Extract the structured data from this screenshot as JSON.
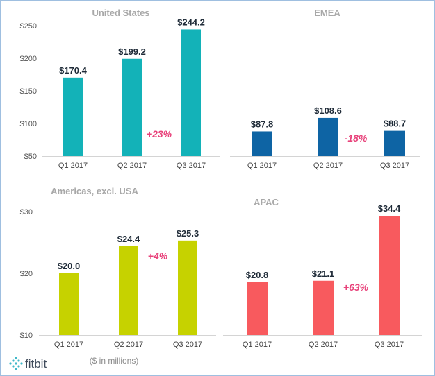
{
  "chart_data": [
    {
      "type": "bar",
      "title": "United States",
      "categories": [
        "Q1 2017",
        "Q2 2017",
        "Q3 2017"
      ],
      "values": [
        170.4,
        199.2,
        244.2
      ],
      "value_labels": [
        "$170.4",
        "$199.2",
        "$244.2"
      ],
      "ylim": [
        50,
        250
      ],
      "yticks": [
        "$50",
        "$100",
        "$150",
        "$200",
        "$250"
      ],
      "ytick_values": [
        50,
        100,
        150,
        200,
        250
      ],
      "show_yaxis": true,
      "annotation": "+23%",
      "color": "#13b2b8"
    },
    {
      "type": "bar",
      "title": "EMEA",
      "categories": [
        "Q1 2017",
        "Q2 2017",
        "Q3 2017"
      ],
      "values": [
        87.8,
        108.6,
        88.7
      ],
      "value_labels": [
        "$87.8",
        "$108.6",
        "$88.7"
      ],
      "ylim": [
        50,
        250
      ],
      "show_yaxis": false,
      "annotation": "-18%",
      "color": "#0e64a4"
    },
    {
      "type": "bar",
      "title": "Americas, excl. USA",
      "categories": [
        "Q1 2017",
        "Q2 2017",
        "Q3 2017"
      ],
      "values": [
        20.0,
        24.4,
        25.3
      ],
      "value_labels": [
        "$20.0",
        "$24.4",
        "$25.3"
      ],
      "ylim": [
        10,
        30
      ],
      "yticks": [
        "$10",
        "$20",
        "$30"
      ],
      "ytick_values": [
        10,
        20,
        30
      ],
      "show_yaxis": true,
      "annotation": "+4%",
      "color": "#c6d200"
    },
    {
      "type": "bar",
      "title": "APAC",
      "categories": [
        "Q1 2017",
        "Q2 2017",
        "Q3 2017"
      ],
      "values": [
        20.8,
        21.1,
        34.4
      ],
      "value_labels": [
        "$20.8",
        "$21.1",
        "$34.4"
      ],
      "ylim": [
        10,
        34.4
      ],
      "show_yaxis": false,
      "annotation": "+63%",
      "color": "#f85a5e"
    }
  ],
  "colors": {
    "annotation": "#e8437b",
    "title": "#a8a8a8"
  },
  "footer": {
    "units_note": "($ in millions)",
    "logo": "fitbit"
  }
}
